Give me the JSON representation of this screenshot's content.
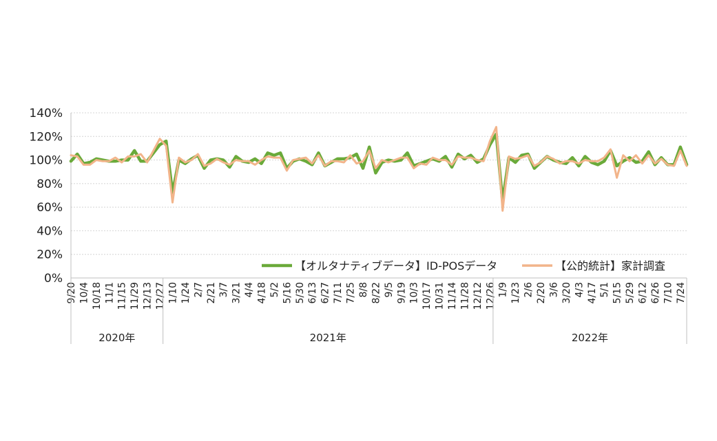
{
  "chart_data": {
    "type": "line",
    "ylim": [
      0,
      140
    ],
    "yticks": [
      "0%",
      "20%",
      "40%",
      "60%",
      "80%",
      "100%",
      "120%",
      "140%"
    ],
    "grid": true,
    "legend_position": "bottom-right",
    "x": [
      "9/20",
      "9/27",
      "10/4",
      "10/11",
      "10/18",
      "10/25",
      "11/1",
      "11/8",
      "11/15",
      "11/22",
      "11/29",
      "12/6",
      "12/13",
      "12/20",
      "12/27",
      "1/3",
      "1/10",
      "1/17",
      "1/24",
      "1/31",
      "2/7",
      "2/14",
      "2/21",
      "2/28",
      "3/7",
      "3/14",
      "3/21",
      "3/28",
      "4/4",
      "4/11",
      "4/18",
      "4/25",
      "5/2",
      "5/9",
      "5/16",
      "5/23",
      "5/30",
      "6/6",
      "6/13",
      "6/20",
      "6/27",
      "7/4",
      "7/11",
      "7/18",
      "7/25",
      "8/1",
      "8/8",
      "8/15",
      "8/22",
      "8/29",
      "9/5",
      "9/12",
      "9/19",
      "9/26",
      "10/3",
      "10/10",
      "10/17",
      "10/24",
      "10/31",
      "11/7",
      "11/14",
      "11/21",
      "11/28",
      "12/5",
      "12/12",
      "12/19",
      "12/26",
      "1/2",
      "1/9",
      "1/16",
      "1/23",
      "1/30",
      "2/6",
      "2/13",
      "2/20",
      "2/27",
      "3/6",
      "3/13",
      "3/20",
      "3/27",
      "4/3",
      "4/10",
      "4/17",
      "4/24",
      "5/1",
      "5/8",
      "5/15",
      "5/22",
      "5/29",
      "6/5",
      "6/12",
      "6/19",
      "6/26",
      "7/3",
      "7/10",
      "7/17",
      "7/24",
      "7/31"
    ],
    "tick_labels": [
      "9/20",
      "10/4",
      "10/18",
      "11/1",
      "11/15",
      "11/29",
      "12/13",
      "12/27",
      "1/10",
      "1/24",
      "2/7",
      "2/21",
      "3/7",
      "3/21",
      "4/4",
      "4/18",
      "5/2",
      "5/16",
      "5/30",
      "6/13",
      "6/27",
      "7/11",
      "7/25",
      "8/8",
      "8/22",
      "9/5",
      "9/19",
      "10/3",
      "10/17",
      "10/31",
      "11/14",
      "11/28",
      "12/12",
      "12/26",
      "1/9",
      "1/23",
      "2/6",
      "2/20",
      "3/6",
      "3/20",
      "4/3",
      "4/17",
      "5/1",
      "5/15",
      "5/29",
      "6/12",
      "6/26",
      "7/10",
      "7/24"
    ],
    "years": [
      {
        "label": "2020年",
        "start": 0,
        "end": 15
      },
      {
        "label": "2021年",
        "start": 15,
        "end": 67
      },
      {
        "label": "2022年",
        "start": 67,
        "end": 98
      }
    ],
    "series": [
      {
        "name": "【オルタナティブデータ】ID-POSデータ",
        "color": "#6aaa3a",
        "values": [
          99,
          105,
          97,
          98,
          101,
          100,
          99,
          99,
          100,
          100,
          108,
          99,
          99,
          106,
          113,
          116,
          72,
          100,
          97,
          101,
          104,
          93,
          100,
          101,
          100,
          94,
          103,
          99,
          98,
          101,
          97,
          106,
          104,
          106,
          93,
          99,
          101,
          99,
          96,
          106,
          95,
          98,
          101,
          101,
          102,
          105,
          93,
          111,
          89,
          98,
          100,
          99,
          100,
          106,
          95,
          97,
          99,
          101,
          99,
          103,
          94,
          105,
          101,
          104,
          98,
          101,
          113,
          122,
          65,
          102,
          98,
          104,
          105,
          93,
          98,
          103,
          100,
          98,
          97,
          102,
          95,
          103,
          98,
          96,
          99,
          108,
          95,
          99,
          102,
          98,
          99,
          107,
          96,
          102,
          96,
          96,
          111,
          96
        ]
      },
      {
        "name": "【公的統計】家計調査",
        "color": "#f2b48a",
        "values": [
          104,
          103,
          96,
          96,
          100,
          99,
          99,
          102,
          98,
          103,
          103,
          105,
          98,
          108,
          118,
          112,
          64,
          102,
          98,
          100,
          105,
          95,
          97,
          101,
          98,
          96,
          100,
          99,
          99,
          96,
          100,
          103,
          102,
          102,
          91,
          100,
          101,
          102,
          97,
          104,
          95,
          99,
          99,
          98,
          104,
          97,
          99,
          108,
          93,
          100,
          98,
          100,
          102,
          102,
          93,
          97,
          96,
          102,
          100,
          100,
          96,
          103,
          102,
          102,
          100,
          99,
          116,
          128,
          57,
          103,
          101,
          102,
          104,
          95,
          98,
          103,
          101,
          97,
          99,
          99,
          97,
          100,
          99,
          99,
          102,
          109,
          85,
          104,
          99,
          104,
          97,
          104,
          97,
          101,
          96,
          95,
          108,
          95
        ]
      }
    ]
  }
}
